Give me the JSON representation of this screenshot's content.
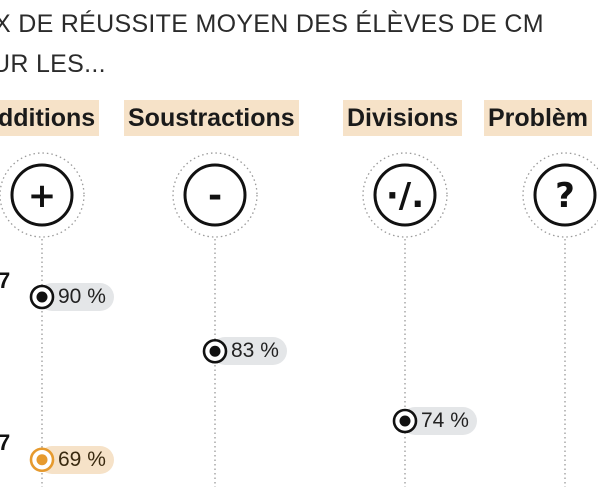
{
  "title": {
    "line1": "X DE RÉUSSITE MOYEN DES ÉLÈVES DE CM",
    "line2": "UR LES..."
  },
  "chart_data": {
    "type": "dot",
    "categories": [
      "dditions",
      "Soustractions",
      "Divisions",
      "Problèm"
    ],
    "icons": [
      "+",
      "-",
      "·/.",
      "?"
    ],
    "series": [
      {
        "name": "7",
        "color": "#111111",
        "values": [
          90,
          83,
          74,
          null
        ],
        "labels": [
          "90 %",
          "83 %",
          "74 %",
          ""
        ]
      },
      {
        "name": "7",
        "color": "#e69a2e",
        "values": [
          69,
          null,
          null,
          null
        ],
        "labels": [
          "69 %",
          "",
          "",
          ""
        ]
      }
    ],
    "grid": false,
    "colors": {
      "dark": "#111111",
      "accent": "#e69a2e",
      "label_bg_dark": "#e4e6e8",
      "label_bg_accent": "#f6e2c8"
    }
  }
}
